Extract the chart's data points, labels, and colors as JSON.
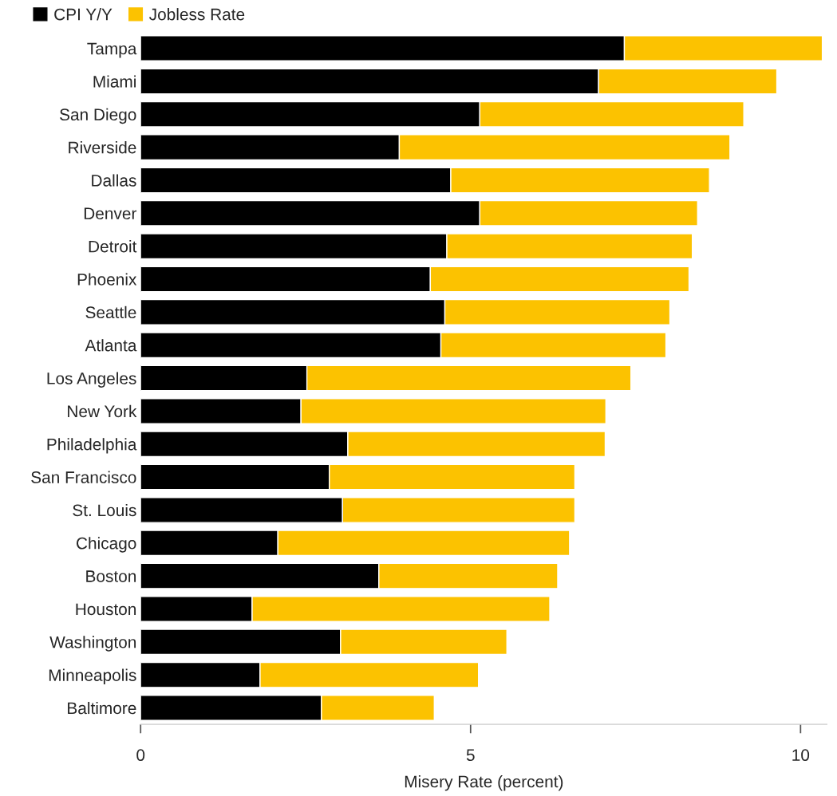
{
  "chart_data": {
    "type": "bar",
    "orientation": "horizontal",
    "stacked": true,
    "xlabel": "Misery Rate (percent)",
    "categories": [
      "Tampa",
      "Miami",
      "San Diego",
      "Riverside",
      "Dallas",
      "Denver",
      "Detroit",
      "Phoenix",
      "Seattle",
      "Atlanta",
      "Los Angeles",
      "New York",
      "Philadelphia",
      "San Francisco",
      "St. Louis",
      "Chicago",
      "Boston",
      "Houston",
      "Washington",
      "Minneapolis",
      "Baltimore"
    ],
    "series": [
      {
        "name": "CPI Y/Y",
        "color": "#000000",
        "values": [
          7.33,
          6.94,
          5.14,
          3.92,
          4.7,
          5.14,
          4.64,
          4.39,
          4.61,
          4.55,
          2.52,
          2.43,
          3.14,
          2.86,
          3.06,
          2.08,
          3.61,
          1.69,
          3.03,
          1.81,
          2.74
        ]
      },
      {
        "name": "Jobless Rate",
        "color": "#fcc200",
        "values": [
          3.0,
          2.7,
          4.0,
          5.01,
          3.92,
          3.3,
          3.72,
          3.92,
          3.41,
          3.41,
          4.91,
          4.62,
          3.9,
          3.72,
          3.52,
          4.42,
          2.71,
          4.51,
          2.52,
          3.31,
          1.71
        ]
      }
    ],
    "xlim": [
      0,
      10.4
    ],
    "xticks": [
      0,
      5,
      10
    ],
    "grid": false,
    "legend": "top left"
  }
}
